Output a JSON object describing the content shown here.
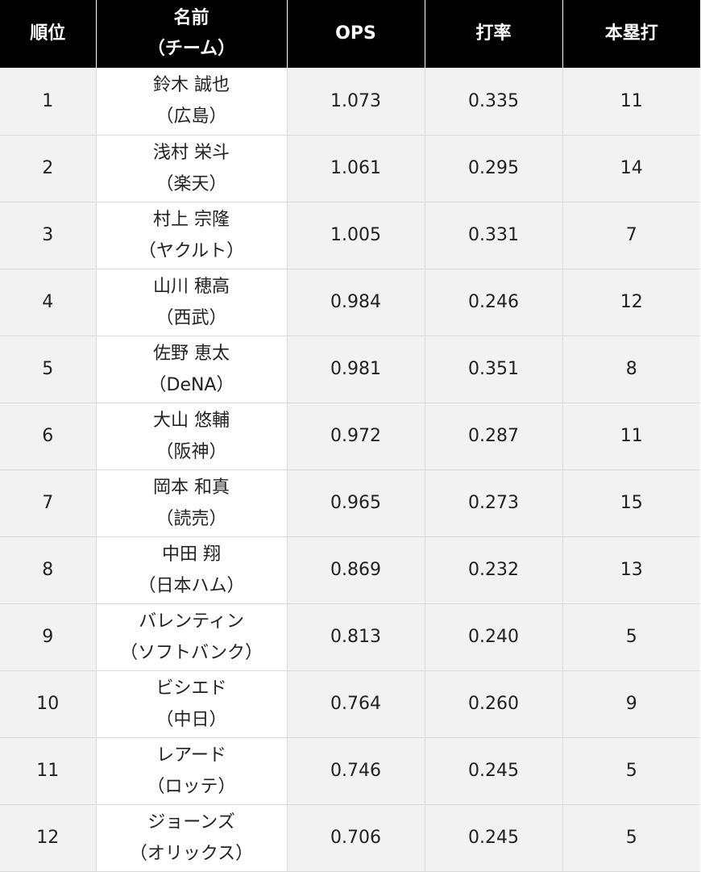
{
  "header": {
    "rank": "順位",
    "name_line1": "名前",
    "name_line2": "（チーム）",
    "ops": "OPS",
    "avg": "打率",
    "hr": "本塁打"
  },
  "rows": [
    {
      "rank": "1",
      "name": "鈴木 誠也",
      "team": "（広島）",
      "ops": "1.073",
      "avg": "0.335",
      "hr": "11"
    },
    {
      "rank": "2",
      "name": "浅村 栄斗",
      "team": "（楽天）",
      "ops": "1.061",
      "avg": "0.295",
      "hr": "14"
    },
    {
      "rank": "3",
      "name": "村上 宗隆",
      "team": "（ヤクルト）",
      "ops": "1.005",
      "avg": "0.331",
      "hr": "7"
    },
    {
      "rank": "4",
      "name": "山川 穂高",
      "team": "（西武）",
      "ops": "0.984",
      "avg": "0.246",
      "hr": "12"
    },
    {
      "rank": "5",
      "name": "佐野 恵太",
      "team": "（DeNA）",
      "ops": "0.981",
      "avg": "0.351",
      "hr": "8"
    },
    {
      "rank": "6",
      "name": "大山 悠輔",
      "team": "（阪神）",
      "ops": "0.972",
      "avg": "0.287",
      "hr": "11"
    },
    {
      "rank": "7",
      "name": "岡本 和真",
      "team": "（読売）",
      "ops": "0.965",
      "avg": "0.273",
      "hr": "15"
    },
    {
      "rank": "8",
      "name": "中田 翔",
      "team": "（日本ハム）",
      "ops": "0.869",
      "avg": "0.232",
      "hr": "13"
    },
    {
      "rank": "9",
      "name": "バレンティン",
      "team": "（ソフトバンク）",
      "ops": "0.813",
      "avg": "0.240",
      "hr": "5"
    },
    {
      "rank": "10",
      "name": "ビシエド",
      "team": "（中日）",
      "ops": "0.764",
      "avg": "0.260",
      "hr": "9"
    },
    {
      "rank": "11",
      "name": "レアード",
      "team": "（ロッテ）",
      "ops": "0.746",
      "avg": "0.245",
      "hr": "5"
    },
    {
      "rank": "12",
      "name": "ジョーンズ",
      "team": "（オリックス）",
      "ops": "0.706",
      "avg": "0.245",
      "hr": "5"
    }
  ]
}
